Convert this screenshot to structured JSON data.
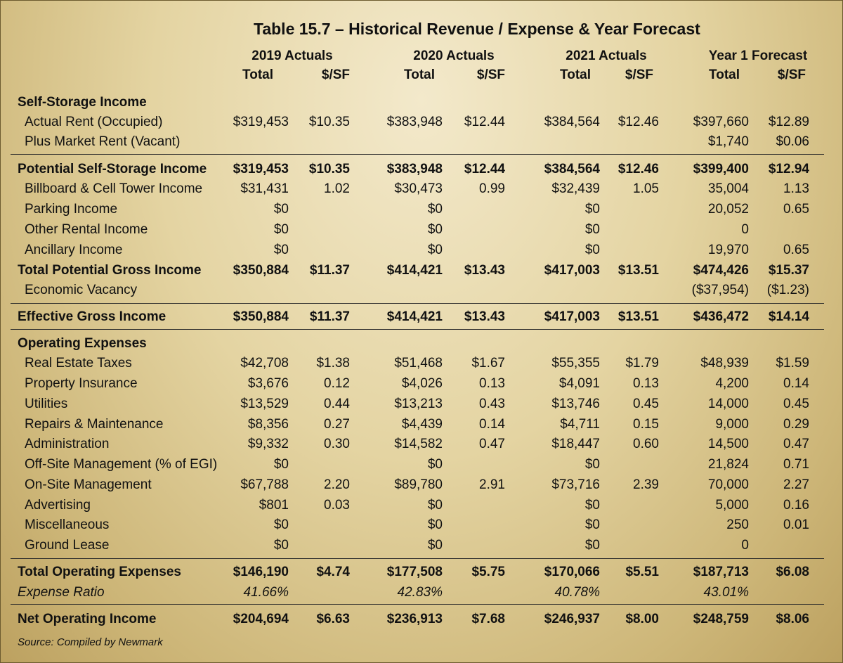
{
  "title": "Table 15.7 – Historical Revenue / Expense & Year Forecast",
  "column_groups": [
    {
      "label": "2019 Actuals",
      "columns": [
        "Total",
        "$/SF"
      ]
    },
    {
      "label": "2020 Actuals",
      "columns": [
        "Total",
        "$/SF"
      ]
    },
    {
      "label": "2021 Actuals",
      "columns": [
        "Total",
        "$/SF"
      ]
    },
    {
      "label": "Year 1 Forecast",
      "columns": [
        "Total",
        "$/SF"
      ]
    }
  ],
  "rows": [
    {
      "label": "Self-Storage Income",
      "emphasis": "bold"
    },
    {
      "label": "Actual Rent (Occupied)",
      "cells": [
        "$319,453",
        "$10.35",
        "$383,948",
        "$12.44",
        "$384,564",
        "$12.46",
        "$397,660",
        "$12.89"
      ]
    },
    {
      "label": "Plus Market Rent (Vacant)",
      "cells": [
        null,
        null,
        null,
        null,
        null,
        null,
        "$1,740",
        "$0.06"
      ]
    },
    {
      "label": "Potential Self-Storage Income",
      "emphasis": "bold",
      "cells": [
        "$319,453",
        "$10.35",
        "$383,948",
        "$12.44",
        "$384,564",
        "$12.46",
        "$399,400",
        "$12.94"
      ]
    },
    {
      "label": "Billboard & Cell Tower Income",
      "cells": [
        "$31,431",
        "1.02",
        "$30,473",
        "0.99",
        "$32,439",
        "1.05",
        "35,004",
        "1.13"
      ]
    },
    {
      "label": "Parking Income",
      "cells": [
        "$0",
        null,
        "$0",
        null,
        "$0",
        null,
        "20,052",
        "0.65"
      ]
    },
    {
      "label": "Other Rental Income",
      "cells": [
        "$0",
        null,
        "$0",
        null,
        "$0",
        null,
        "0",
        null
      ]
    },
    {
      "label": "Ancillary Income",
      "cells": [
        "$0",
        null,
        "$0",
        null,
        "$0",
        null,
        "19,970",
        "0.65"
      ]
    },
    {
      "label": "Total Potential Gross Income",
      "emphasis": "bold",
      "cells": [
        "$350,884",
        "$11.37",
        "$414,421",
        "$13.43",
        "$417,003",
        "$13.51",
        "$474,426",
        "$15.37"
      ]
    },
    {
      "label": "Economic Vacancy",
      "cells": [
        null,
        null,
        null,
        null,
        null,
        null,
        "($37,954)",
        "($1.23)"
      ]
    },
    {
      "label": "Effective Gross Income",
      "emphasis": "bold",
      "cells": [
        "$350,884",
        "$11.37",
        "$414,421",
        "$13.43",
        "$417,003",
        "$13.51",
        "$436,472",
        "$14.14"
      ]
    },
    {
      "label": "Operating Expenses",
      "emphasis": "bold"
    },
    {
      "label": "Real Estate Taxes",
      "cells": [
        "$42,708",
        "$1.38",
        "$51,468",
        "$1.67",
        "$55,355",
        "$1.79",
        "$48,939",
        "$1.59"
      ]
    },
    {
      "label": "Property Insurance",
      "cells": [
        "$3,676",
        "0.12",
        "$4,026",
        "0.13",
        "$4,091",
        "0.13",
        "4,200",
        "0.14"
      ]
    },
    {
      "label": "Utilities",
      "cells": [
        "$13,529",
        "0.44",
        "$13,213",
        "0.43",
        "$13,746",
        "0.45",
        "14,000",
        "0.45"
      ]
    },
    {
      "label": "Repairs & Maintenance",
      "cells": [
        "$8,356",
        "0.27",
        "$4,439",
        "0.14",
        "$4,711",
        "0.15",
        "9,000",
        "0.29"
      ]
    },
    {
      "label": "Administration",
      "cells": [
        "$9,332",
        "0.30",
        "$14,582",
        "0.47",
        "$18,447",
        "0.60",
        "14,500",
        "0.47"
      ]
    },
    {
      "label": "Off-Site Management (% of EGI)",
      "cells": [
        "$0",
        null,
        "$0",
        null,
        "$0",
        null,
        "21,824",
        "0.71"
      ]
    },
    {
      "label": "On-Site Management",
      "cells": [
        "$67,788",
        "2.20",
        "$89,780",
        "2.91",
        "$73,716",
        "2.39",
        "70,000",
        "2.27"
      ]
    },
    {
      "label": "Advertising",
      "cells": [
        "$801",
        "0.03",
        "$0",
        null,
        "$0",
        null,
        "5,000",
        "0.16"
      ]
    },
    {
      "label": "Miscellaneous",
      "cells": [
        "$0",
        null,
        "$0",
        null,
        "$0",
        null,
        "250",
        "0.01"
      ]
    },
    {
      "label": "Ground Lease",
      "cells": [
        "$0",
        null,
        "$0",
        null,
        "$0",
        null,
        "0",
        null
      ]
    },
    {
      "label": "Total Operating Expenses",
      "emphasis": "bold",
      "cells": [
        "$146,190",
        "$4.74",
        "$177,508",
        "$5.75",
        "$170,066",
        "$5.51",
        "$187,713",
        "$6.08"
      ]
    },
    {
      "label": "Expense Ratio",
      "emphasis": "italic",
      "cells": [
        "41.66%",
        null,
        "42.83%",
        null,
        "40.78%",
        null,
        "43.01%",
        null
      ]
    },
    {
      "label": "Net Operating Income",
      "emphasis": "bold",
      "cells": [
        "$204,694",
        "$6.63",
        "$236,913",
        "$7.68",
        "$246,937",
        "$8.00",
        "$248,759",
        "$8.06"
      ]
    }
  ],
  "source": "Source: Compiled by Newmark"
}
